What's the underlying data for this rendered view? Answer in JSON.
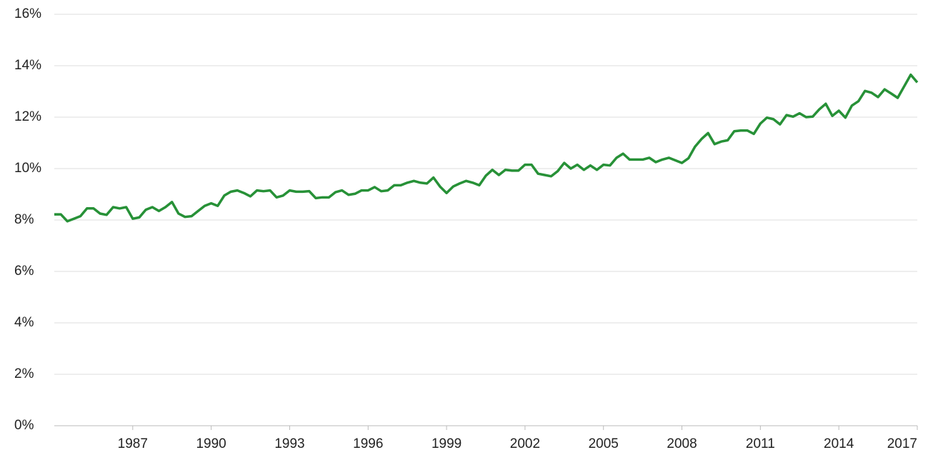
{
  "chart_data": {
    "type": "line",
    "x": [
      1984,
      1984.25,
      1984.5,
      1984.75,
      1985,
      1985.25,
      1985.5,
      1985.75,
      1986,
      1986.25,
      1986.5,
      1986.75,
      1987,
      1987.25,
      1987.5,
      1987.75,
      1988,
      1988.25,
      1988.5,
      1988.75,
      1989,
      1989.25,
      1989.5,
      1989.75,
      1990,
      1990.25,
      1990.5,
      1990.75,
      1991,
      1991.25,
      1991.5,
      1991.75,
      1992,
      1992.25,
      1992.5,
      1992.75,
      1993,
      1993.25,
      1993.5,
      1993.75,
      1994,
      1994.25,
      1994.5,
      1994.75,
      1995,
      1995.25,
      1995.5,
      1995.75,
      1996,
      1996.25,
      1996.5,
      1996.75,
      1997,
      1997.25,
      1997.5,
      1997.75,
      1998,
      1998.25,
      1998.5,
      1998.75,
      1999,
      1999.25,
      1999.5,
      1999.75,
      2000,
      2000.25,
      2000.5,
      2000.75,
      2001,
      2001.25,
      2001.5,
      2001.75,
      2002,
      2002.25,
      2002.5,
      2002.75,
      2003,
      2003.25,
      2003.5,
      2003.75,
      2004,
      2004.25,
      2004.5,
      2004.75,
      2005,
      2005.25,
      2005.5,
      2005.75,
      2006,
      2006.25,
      2006.5,
      2006.75,
      2007,
      2007.25,
      2007.5,
      2007.75,
      2008,
      2008.25,
      2008.5,
      2008.75,
      2009,
      2009.25,
      2009.5,
      2009.75,
      2010,
      2010.25,
      2010.5,
      2010.75,
      2011,
      2011.25,
      2011.5,
      2011.75,
      2012,
      2012.25,
      2012.5,
      2012.75,
      2013,
      2013.25,
      2013.5,
      2013.75,
      2014,
      2014.25,
      2014.5,
      2014.75,
      2015,
      2015.25,
      2015.5,
      2015.75,
      2016,
      2016.25,
      2016.5,
      2016.75,
      2017
    ],
    "series": [
      {
        "color": "#279137",
        "values": [
          8.22,
          8.22,
          7.95,
          8.05,
          8.15,
          8.45,
          8.45,
          8.25,
          8.2,
          8.5,
          8.45,
          8.5,
          8.05,
          8.1,
          8.4,
          8.5,
          8.35,
          8.5,
          8.7,
          8.25,
          8.12,
          8.15,
          8.35,
          8.55,
          8.65,
          8.55,
          8.95,
          9.1,
          9.15,
          9.05,
          8.92,
          9.15,
          9.12,
          9.15,
          8.88,
          8.95,
          9.15,
          9.1,
          9.1,
          9.12,
          8.85,
          8.88,
          8.88,
          9.08,
          9.15,
          8.98,
          9.02,
          9.15,
          9.15,
          9.28,
          9.12,
          9.15,
          9.35,
          9.35,
          9.45,
          9.52,
          9.45,
          9.42,
          9.65,
          9.3,
          9.05,
          9.3,
          9.42,
          9.52,
          9.45,
          9.35,
          9.72,
          9.95,
          9.75,
          9.95,
          9.92,
          9.92,
          10.15,
          10.15,
          9.8,
          9.75,
          9.7,
          9.9,
          10.22,
          10.0,
          10.15,
          9.95,
          10.12,
          9.95,
          10.15,
          10.12,
          10.42,
          10.58,
          10.35,
          10.35,
          10.35,
          10.42,
          10.25,
          10.35,
          10.42,
          10.32,
          10.22,
          10.4,
          10.85,
          11.15,
          11.38,
          10.95,
          11.05,
          11.1,
          11.45,
          11.48,
          11.48,
          11.35,
          11.75,
          11.98,
          11.92,
          11.72,
          12.08,
          12.02,
          12.15,
          12.0,
          12.02,
          12.3,
          12.52,
          12.05,
          12.25,
          11.98,
          12.45,
          12.62,
          13.02,
          12.95,
          12.78,
          13.08,
          12.92,
          12.75,
          13.2,
          13.65,
          13.35
        ]
      }
    ],
    "xlim": [
      1984,
      2017
    ],
    "xticks": [
      1987,
      1990,
      1993,
      1996,
      1999,
      2002,
      2005,
      2008,
      2011,
      2014,
      2017
    ],
    "ylim": [
      0,
      16
    ],
    "yticks": [
      {
        "value": 0,
        "label": "0%"
      },
      {
        "value": 2,
        "label": "2%"
      },
      {
        "value": 4,
        "label": "4%"
      },
      {
        "value": 6,
        "label": "6%"
      },
      {
        "value": 8,
        "label": "8%"
      },
      {
        "value": 10,
        "label": "10%"
      },
      {
        "value": 12,
        "label": "12%"
      },
      {
        "value": 14,
        "label": "14%"
      },
      {
        "value": 16,
        "label": "16%"
      }
    ],
    "grid": true
  }
}
